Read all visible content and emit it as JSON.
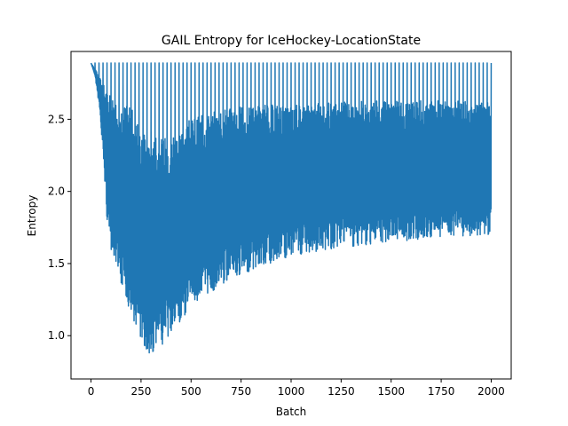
{
  "chart_data": {
    "type": "line",
    "title": "GAIL Entropy for IceHockey-LocationState",
    "xlabel": "Batch",
    "ylabel": "Entropy",
    "xlim": [
      -100,
      2100
    ],
    "ylim": [
      0.7,
      2.97
    ],
    "xticks": [
      0,
      250,
      500,
      750,
      1000,
      1250,
      1500,
      1750,
      2000
    ],
    "yticks": [
      1.0,
      1.5,
      2.0,
      2.5
    ],
    "ytick_labels": [
      "1.0",
      "1.5",
      "2.0",
      "2.5"
    ],
    "grid": false,
    "series": [
      {
        "color": "#1f77b4",
        "reset_value": 2.89,
        "reset_period": 20,
        "x_max": 2000,
        "envelope": {
          "x": [
            0,
            20,
            40,
            60,
            80,
            100,
            150,
            200,
            250,
            300,
            350,
            400,
            450,
            500,
            600,
            700,
            800,
            1000,
            1200,
            1500,
            1750,
            2000
          ],
          "upper": [
            2.89,
            2.85,
            2.8,
            2.75,
            2.7,
            2.66,
            2.62,
            2.58,
            2.45,
            2.38,
            2.37,
            2.4,
            2.45,
            2.5,
            2.55,
            2.58,
            2.6,
            2.6,
            2.62,
            2.63,
            2.63,
            2.62
          ],
          "lower": [
            2.89,
            2.8,
            2.6,
            2.25,
            1.8,
            1.6,
            1.35,
            1.15,
            0.95,
            0.85,
            0.93,
            1.0,
            1.1,
            1.2,
            1.3,
            1.38,
            1.45,
            1.55,
            1.6,
            1.65,
            1.68,
            1.7
          ]
        }
      }
    ]
  }
}
